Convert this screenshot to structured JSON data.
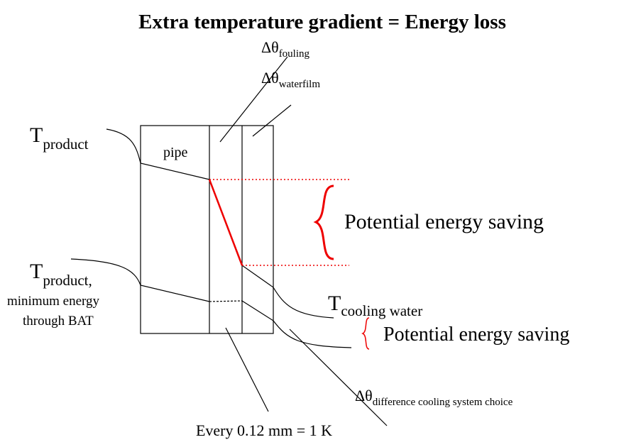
{
  "title": "Extra temperature gradient = Energy loss",
  "labels": {
    "fouling": {
      "main": "Δθ",
      "sub": "fouling"
    },
    "waterfilm": {
      "main": "Δθ",
      "sub": "waterfilm"
    },
    "product": {
      "main": "T",
      "sub": "product"
    },
    "pipe": "pipe",
    "saving_large": "Potential energy saving",
    "product_bat": {
      "main": "T",
      "sub": "product,",
      "line2": "minimum energy",
      "line3": "through BAT"
    },
    "cooling_water": {
      "main": "T",
      "sub": "cooling water"
    },
    "saving_small": "Potential energy saving",
    "difference": {
      "main": "Δθ",
      "sub": "difference cooling system choice"
    },
    "scale": "Every 0.12 mm = 1 K"
  }
}
